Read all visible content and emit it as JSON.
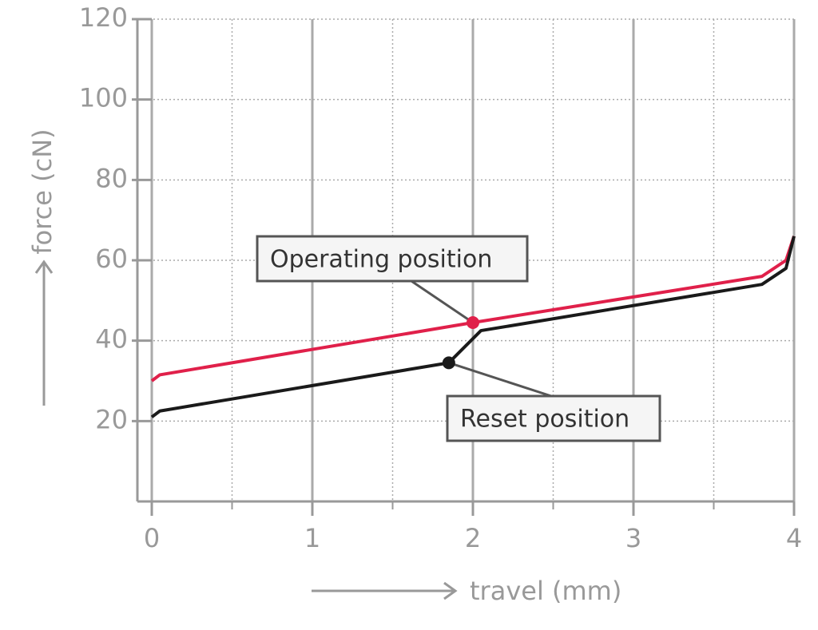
{
  "chart_data": {
    "type": "line",
    "x_label": "travel (mm)",
    "y_label": "force (cN)",
    "xlim": [
      0,
      4
    ],
    "ylim": [
      0,
      120
    ],
    "xticks": [
      0,
      1,
      2,
      3,
      4
    ],
    "minor_xticks": [
      0.5,
      1.5,
      2.5,
      3.5
    ],
    "yticks": [
      20,
      40,
      60,
      80,
      100,
      120
    ],
    "grid": true,
    "series": [
      {
        "color": "#e0204a",
        "x": [
          0,
          0.05,
          2,
          3.8,
          3.95,
          4
        ],
        "values": [
          30,
          31.5,
          44.5,
          56,
          60,
          66
        ]
      },
      {
        "color": "#1a1a1a",
        "x": [
          0,
          0.05,
          1.85,
          2.05,
          3.8,
          3.95,
          4
        ],
        "values": [
          21,
          22.5,
          34.5,
          42.5,
          54,
          58,
          66
        ]
      }
    ],
    "annotations": [
      {
        "text": "Operating position",
        "x": 2,
        "y": 44.5,
        "color": "#e0204a"
      },
      {
        "text": "Reset position",
        "x": 1.85,
        "y": 34.5,
        "color": "#1a1a1a"
      }
    ]
  }
}
